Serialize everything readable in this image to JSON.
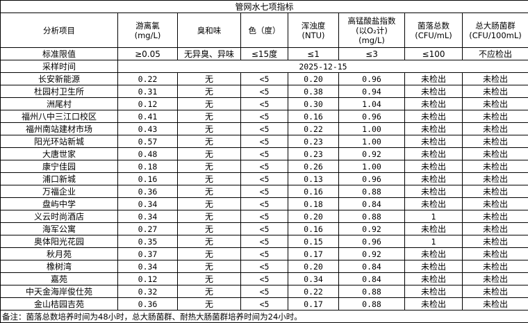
{
  "title": "管网水七项指标",
  "headers": [
    "分析项目",
    "游离氯\n(mg/L)",
    "臭和味",
    "色（度）",
    "浑浊度\n(NTU)",
    "高锰酸盐指数\n(以O₂计)\n(mg/L)",
    "菌落总数\n(CFU/mL)",
    "总大肠菌群\n(CFU/100mL)"
  ],
  "limits": {
    "label": "标准限值",
    "values": [
      "≥0.05",
      "无异臭、异味",
      "≤15度",
      "≤1",
      "≤3",
      "≤100",
      "不应检出"
    ]
  },
  "sampling": {
    "label": "采样时间",
    "date": "2025-12-15"
  },
  "rows": [
    [
      "长安新能源",
      "0.22",
      "无",
      "<5",
      "0.20",
      "0.96",
      "未检出",
      "未检出"
    ],
    [
      "杜园村卫生所",
      "0.31",
      "无",
      "<5",
      "0.38",
      "0.94",
      "未检出",
      "未检出"
    ],
    [
      "洲尾村",
      "0.12",
      "无",
      "<5",
      "0.30",
      "1.04",
      "未检出",
      "未检出"
    ],
    [
      "福州八中三江口校区",
      "0.41",
      "无",
      "<5",
      "0.16",
      "0.96",
      "未检出",
      "未检出"
    ],
    [
      "福州南站建材市场",
      "0.43",
      "无",
      "<5",
      "0.22",
      "1.00",
      "未检出",
      "未检出"
    ],
    [
      "阳光环站新城",
      "0.57",
      "无",
      "<5",
      "0.23",
      "1.00",
      "未检出",
      "未检出"
    ],
    [
      "大唐世家",
      "0.48",
      "无",
      "<5",
      "0.23",
      "0.92",
      "未检出",
      "未检出"
    ],
    [
      "康宁佳园",
      "0.18",
      "无",
      "<5",
      "0.26",
      "1.00",
      "未检出",
      "未检出"
    ],
    [
      "浦口新城",
      "0.16",
      "无",
      "<5",
      "0.13",
      "0.96",
      "未检出",
      "未检出"
    ],
    [
      "万福企业",
      "0.36",
      "无",
      "<5",
      "0.16",
      "0.88",
      "未检出",
      "未检出"
    ],
    [
      "盘屿中学",
      "0.34",
      "无",
      "<5",
      "0.18",
      "0.84",
      "未检出",
      "未检出"
    ],
    [
      "义云时尚酒店",
      "0.34",
      "无",
      "<5",
      "0.20",
      "0.88",
      "1",
      "未检出"
    ],
    [
      "海军公寓",
      "0.27",
      "无",
      "<5",
      "0.16",
      "0.92",
      "未检出",
      "未检出"
    ],
    [
      "奥体阳光花园",
      "0.35",
      "无",
      "<5",
      "0.15",
      "0.96",
      "1",
      "未检出"
    ],
    [
      "秋月苑",
      "0.37",
      "无",
      "<5",
      "0.17",
      "0.92",
      "未检出",
      "未检出"
    ],
    [
      "橡树湾",
      "0.34",
      "无",
      "<5",
      "0.20",
      "0.84",
      "未检出",
      "未检出"
    ],
    [
      "嘉苑",
      "0.12",
      "无",
      "<5",
      "0.34",
      "0.84",
      "未检出",
      "未检出"
    ],
    [
      "中天金海岸俊仕苑",
      "0.32",
      "无",
      "<5",
      "0.22",
      "0.88",
      "未检出",
      "未检出"
    ],
    [
      "金山桔园吉苑",
      "0.36",
      "无",
      "<5",
      "0.17",
      "0.88",
      "未检出",
      "未检出"
    ]
  ],
  "note": "备注：菌落总数培养时间为48小时，总大肠菌群、耐热大肠菌群培养时间为24小时。"
}
